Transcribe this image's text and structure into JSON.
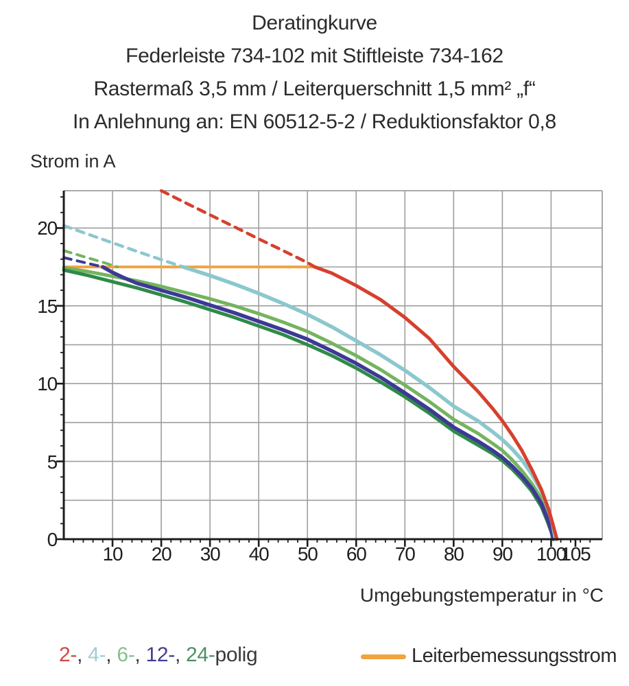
{
  "title": {
    "line1": "Deratingkurve",
    "line2": "Federleiste 734-102 mit Stiftleiste 734-162",
    "line3": "Rastermaß 3,5 mm / Leiterquerschnitt 1,5 mm² „f“",
    "line4": "In Anlehnung an: EN 60512-5-2 / Reduktionsfaktor 0,8"
  },
  "axes": {
    "y_title": "Strom in A",
    "x_title": "Umgebungstemperatur in °C",
    "x_tick_labels": [
      10,
      20,
      30,
      40,
      50,
      60,
      70,
      80,
      90,
      100,
      105
    ],
    "y_tick_labels": [
      0,
      5,
      10,
      15,
      20
    ]
  },
  "legend": {
    "poles": [
      {
        "label": "2-",
        "color": "#cf4840"
      },
      {
        "label": "4-",
        "color": "#9fced3"
      },
      {
        "label": "6-",
        "color": "#86bf8a"
      },
      {
        "label": "12-",
        "color": "#423e8e"
      },
      {
        "label": "24-",
        "color": "#4c8f63"
      }
    ],
    "separator": ", ",
    "suffix": "polig",
    "suffix_color": "#3a3a3a",
    "rated_label": "Leiterbemessungsstrom",
    "rated_color": "#f1a33e"
  },
  "colors": {
    "grid": "#9e9e9e",
    "axis": "#1c1c1c",
    "text": "#2b2b2b"
  },
  "chart_data": {
    "type": "line",
    "title": "Deratingkurve",
    "xlabel": "Umgebungstemperatur in °C",
    "ylabel": "Strom in A",
    "xlim": [
      0,
      110.5
    ],
    "ylim": [
      0,
      22.4
    ],
    "grid": "on",
    "x_gridlines": [
      10,
      20,
      30,
      40,
      50,
      60,
      70,
      80,
      90,
      100
    ],
    "y_gridlines": [
      2.5,
      5,
      7.5,
      10,
      12.5,
      15,
      17.5,
      20
    ],
    "rated_current_A": 17.5,
    "series": [
      {
        "id": "rated-current-line",
        "name": "Leiterbemessungsstrom",
        "style": "solid",
        "color": "#f1a33e",
        "width": 4,
        "points": [
          [
            0,
            17.5
          ],
          [
            51.5,
            17.5
          ]
        ]
      },
      {
        "id": "curve-2polig-dashed",
        "name": "2-polig",
        "style": "dashed",
        "color": "#d6402e",
        "width": 4.5,
        "points": [
          [
            20,
            22.4
          ],
          [
            25,
            21.62
          ],
          [
            30,
            20.85
          ],
          [
            35,
            20.08
          ],
          [
            40,
            19.3
          ],
          [
            45,
            18.55
          ],
          [
            50,
            17.78
          ],
          [
            51.5,
            17.5
          ]
        ]
      },
      {
        "id": "curve-4polig-dashed",
        "name": "4-polig",
        "style": "dashed",
        "color": "#8bc8ce",
        "width": 4.5,
        "points": [
          [
            0,
            20.15
          ],
          [
            5,
            19.6
          ],
          [
            10,
            19.05
          ],
          [
            15,
            18.5
          ],
          [
            20,
            17.97
          ],
          [
            24.5,
            17.5
          ]
        ]
      },
      {
        "id": "curve-6polig-dashed",
        "name": "6-polig",
        "style": "dashed",
        "color": "#74b45e",
        "width": 4,
        "points": [
          [
            0,
            18.55
          ],
          [
            4,
            18.17
          ],
          [
            8,
            17.8
          ],
          [
            11,
            17.5
          ]
        ]
      },
      {
        "id": "curve-12polig-dashed",
        "name": "12-polig",
        "style": "dashed",
        "color": "#3d3996",
        "width": 4,
        "points": [
          [
            0,
            18.1
          ],
          [
            4,
            17.8
          ],
          [
            8,
            17.5
          ]
        ]
      },
      {
        "id": "curve-6polig",
        "name": "6-polig",
        "style": "solid",
        "color": "#74b45e",
        "width": 5,
        "points": [
          [
            0,
            17.45
          ],
          [
            5,
            17.2
          ],
          [
            10,
            16.9
          ],
          [
            15,
            16.6
          ],
          [
            20,
            16.25
          ],
          [
            25,
            15.85
          ],
          [
            30,
            15.45
          ],
          [
            35,
            15.0
          ],
          [
            40,
            14.5
          ],
          [
            45,
            13.95
          ],
          [
            50,
            13.35
          ],
          [
            55,
            12.6
          ],
          [
            60,
            11.8
          ],
          [
            65,
            10.9
          ],
          [
            70,
            9.9
          ],
          [
            75,
            8.85
          ],
          [
            80,
            7.7
          ],
          [
            85,
            6.8
          ],
          [
            88,
            6.15
          ],
          [
            90,
            5.7
          ],
          [
            92,
            5.1
          ],
          [
            94,
            4.4
          ],
          [
            96,
            3.6
          ],
          [
            98,
            2.6
          ],
          [
            99.5,
            1.4
          ],
          [
            100.2,
            0.7
          ],
          [
            100.6,
            0
          ]
        ]
      },
      {
        "id": "curve-24polig",
        "name": "24-polig",
        "style": "solid",
        "color": "#2f8a48",
        "width": 5,
        "points": [
          [
            0,
            17.3
          ],
          [
            5,
            16.95
          ],
          [
            10,
            16.55
          ],
          [
            15,
            16.15
          ],
          [
            20,
            15.7
          ],
          [
            25,
            15.25
          ],
          [
            30,
            14.75
          ],
          [
            35,
            14.25
          ],
          [
            40,
            13.7
          ],
          [
            45,
            13.15
          ],
          [
            50,
            12.5
          ],
          [
            55,
            11.8
          ],
          [
            60,
            11.0
          ],
          [
            65,
            10.1
          ],
          [
            70,
            9.15
          ],
          [
            75,
            8.1
          ],
          [
            80,
            6.95
          ],
          [
            85,
            6.05
          ],
          [
            88,
            5.5
          ],
          [
            90,
            5.05
          ],
          [
            92,
            4.5
          ],
          [
            94,
            3.85
          ],
          [
            96,
            3.1
          ],
          [
            98,
            2.1
          ],
          [
            99.3,
            1.1
          ],
          [
            100,
            0.5
          ],
          [
            100.4,
            0
          ]
        ]
      },
      {
        "id": "curve-12polig",
        "name": "12-polig",
        "style": "solid",
        "color": "#3d3996",
        "width": 5.5,
        "points": [
          [
            8,
            17.5
          ],
          [
            10,
            17.15
          ],
          [
            12,
            16.85
          ],
          [
            15,
            16.45
          ],
          [
            20,
            16.0
          ],
          [
            25,
            15.55
          ],
          [
            30,
            15.05
          ],
          [
            35,
            14.55
          ],
          [
            40,
            14.0
          ],
          [
            45,
            13.45
          ],
          [
            50,
            12.85
          ],
          [
            55,
            12.1
          ],
          [
            60,
            11.3
          ],
          [
            65,
            10.4
          ],
          [
            70,
            9.4
          ],
          [
            75,
            8.35
          ],
          [
            80,
            7.2
          ],
          [
            85,
            6.3
          ],
          [
            88,
            5.7
          ],
          [
            90,
            5.25
          ],
          [
            92,
            4.7
          ],
          [
            94,
            4.05
          ],
          [
            96,
            3.3
          ],
          [
            98,
            2.3
          ],
          [
            99.4,
            1.2
          ],
          [
            100.1,
            0.5
          ],
          [
            100.5,
            0
          ]
        ]
      },
      {
        "id": "curve-4polig",
        "name": "4-polig",
        "style": "solid",
        "color": "#8bc8ce",
        "width": 5.5,
        "points": [
          [
            24.5,
            17.5
          ],
          [
            30,
            16.95
          ],
          [
            35,
            16.4
          ],
          [
            40,
            15.8
          ],
          [
            45,
            15.15
          ],
          [
            50,
            14.45
          ],
          [
            55,
            13.65
          ],
          [
            60,
            12.75
          ],
          [
            65,
            11.85
          ],
          [
            70,
            10.85
          ],
          [
            75,
            9.75
          ],
          [
            80,
            8.55
          ],
          [
            85,
            7.6
          ],
          [
            88,
            6.9
          ],
          [
            90,
            6.4
          ],
          [
            92,
            5.8
          ],
          [
            94,
            5.1
          ],
          [
            96,
            4.2
          ],
          [
            98,
            3.1
          ],
          [
            99.5,
            1.9
          ],
          [
            100.3,
            1.0
          ],
          [
            100.9,
            0
          ]
        ]
      },
      {
        "id": "curve-2polig",
        "name": "2-polig",
        "style": "solid",
        "color": "#d6402e",
        "width": 5,
        "points": [
          [
            51.5,
            17.5
          ],
          [
            55,
            17.1
          ],
          [
            60,
            16.3
          ],
          [
            65,
            15.4
          ],
          [
            70,
            14.25
          ],
          [
            75,
            12.9
          ],
          [
            80,
            11.1
          ],
          [
            85,
            9.5
          ],
          [
            88,
            8.4
          ],
          [
            90,
            7.6
          ],
          [
            92,
            6.7
          ],
          [
            94,
            5.7
          ],
          [
            96,
            4.5
          ],
          [
            98,
            3.2
          ],
          [
            99.5,
            1.9
          ],
          [
            100.5,
            0.8
          ],
          [
            101.2,
            0
          ]
        ]
      }
    ]
  }
}
